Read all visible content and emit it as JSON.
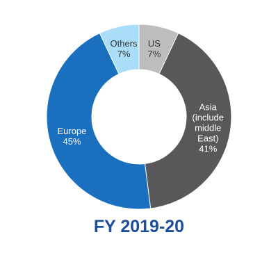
{
  "chart_data": {
    "type": "donut",
    "title": "FY 2019-20",
    "categories": [
      "US",
      "Asia (include middle East)",
      "Europe",
      "Others"
    ],
    "values": [
      7,
      41,
      45,
      7
    ],
    "value_labels": [
      "7%",
      "41%",
      "45%",
      "7%"
    ],
    "colors": [
      "#bdbdbf",
      "#58585a",
      "#1a6fbf",
      "#a9ddf8"
    ]
  }
}
